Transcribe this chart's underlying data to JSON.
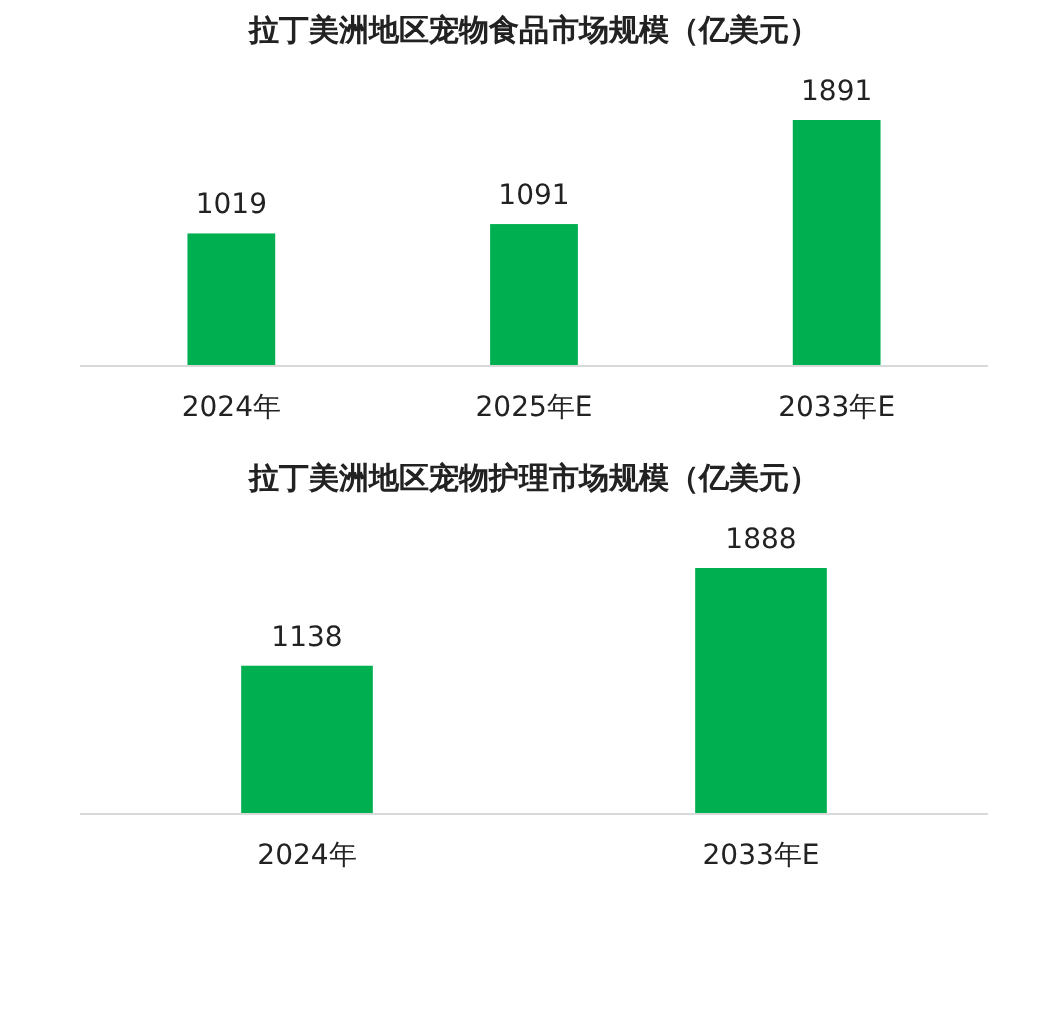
{
  "chart_data": [
    {
      "type": "bar",
      "title": "拉丁美洲地区宠物食品市场规模（亿美元）",
      "categories": [
        "2024年",
        "2025年E",
        "2033年E"
      ],
      "values": [
        1019,
        1091,
        1891
      ],
      "color": "#00b050",
      "relative": false,
      "data_labels": true
    },
    {
      "type": "bar",
      "title": "拉丁美洲地区宠物护理市场规模（亿美元）",
      "categories": [
        "2024年",
        "2033年E"
      ],
      "values": [
        1138,
        1888
      ],
      "color": "#00b050",
      "relative": false,
      "data_labels": true
    }
  ]
}
